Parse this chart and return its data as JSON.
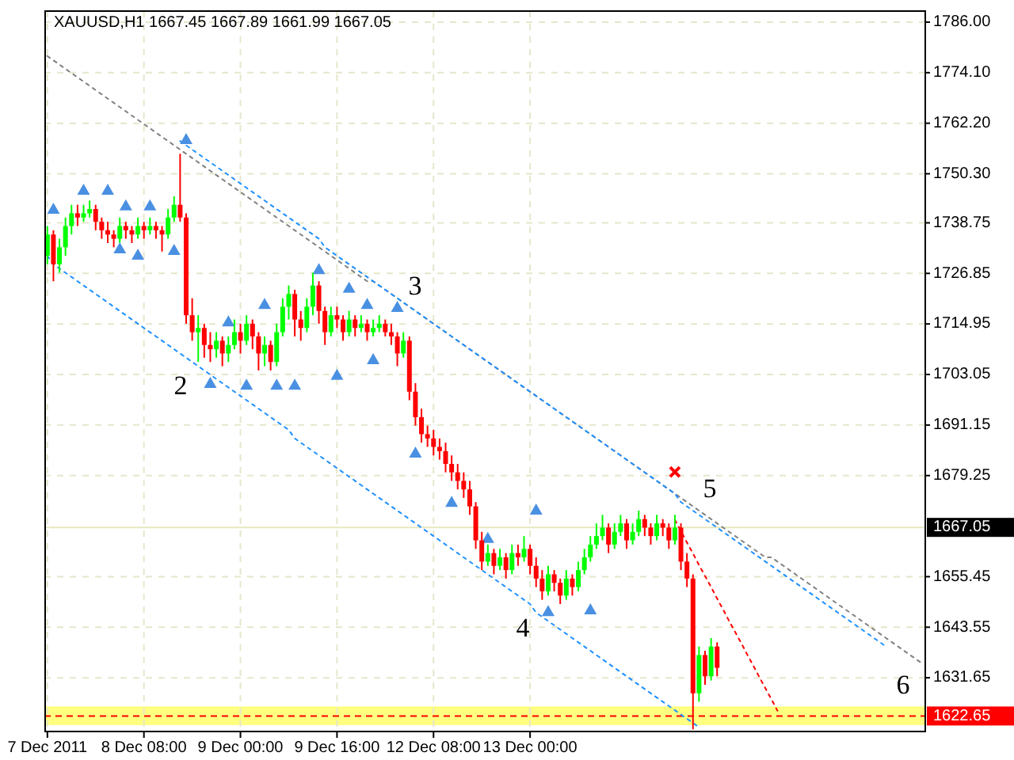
{
  "chart_data": {
    "type": "candlestick",
    "title": "XAUUSD,H1  1667.45 1667.89 1661.99 1667.05",
    "categories": [
      "7 Dec 2011",
      null,
      null,
      null,
      null,
      null,
      null,
      null,
      null,
      null,
      null,
      null,
      null,
      null,
      null,
      null,
      "8 Dec 08:00",
      null,
      null,
      null,
      null,
      null,
      null,
      null,
      null,
      null,
      null,
      null,
      null,
      null,
      null,
      null,
      "9 Dec 00:00",
      null,
      null,
      null,
      null,
      null,
      null,
      null,
      null,
      null,
      null,
      null,
      null,
      null,
      null,
      null,
      "9 Dec 16:00",
      null,
      null,
      null,
      null,
      null,
      null,
      null,
      null,
      null,
      null,
      null,
      null,
      null,
      null,
      null,
      "12 Dec 08:00",
      null,
      null,
      null,
      null,
      null,
      null,
      null,
      null,
      null,
      null,
      null,
      null,
      null,
      null,
      null,
      "13 Dec 00:00",
      null,
      null,
      null,
      null,
      null,
      null,
      null,
      null,
      null,
      null,
      null,
      null,
      null,
      null,
      null,
      null,
      null,
      null,
      null,
      null,
      null,
      null,
      null,
      null,
      null,
      null,
      null,
      null,
      null,
      null,
      null,
      null,
      null,
      null,
      null,
      null,
      null,
      null,
      null,
      null,
      null,
      null,
      null,
      null,
      null,
      null,
      null,
      null,
      null,
      null,
      null,
      null,
      null,
      null,
      null,
      null,
      null,
      null,
      null,
      null,
      null,
      null,
      null,
      null,
      null
    ],
    "ohlc": [
      [
        1731,
        1738,
        1729,
        1736
      ],
      [
        1736,
        1737,
        1725,
        1729
      ],
      [
        1729,
        1735,
        1727,
        1733
      ],
      [
        1733,
        1740,
        1731,
        1738
      ],
      [
        1738,
        1743,
        1736,
        1741
      ],
      [
        1741,
        1743,
        1738,
        1740
      ],
      [
        1740,
        1743,
        1739,
        1741
      ],
      [
        1741,
        1744,
        1740,
        1742
      ],
      [
        1742,
        1743,
        1737,
        1739
      ],
      [
        1739,
        1740,
        1735,
        1737
      ],
      [
        1737,
        1739,
        1734,
        1736
      ],
      [
        1736,
        1737,
        1733,
        1735
      ],
      [
        1735,
        1740,
        1734,
        1738
      ],
      [
        1738,
        1739,
        1735,
        1737
      ],
      [
        1737,
        1738,
        1734,
        1736
      ],
      [
        1736,
        1740,
        1735,
        1738
      ],
      [
        1738,
        1739,
        1735,
        1737
      ],
      [
        1737,
        1740,
        1736,
        1738
      ],
      [
        1738,
        1739,
        1735,
        1737
      ],
      [
        1737,
        1738,
        1732,
        1736
      ],
      [
        1736,
        1742,
        1735,
        1740
      ],
      [
        1740,
        1745,
        1739,
        1743
      ],
      [
        1743,
        1755,
        1739,
        1740
      ],
      [
        1740,
        1741,
        1715,
        1717
      ],
      [
        1717,
        1721,
        1711,
        1713
      ],
      [
        1713,
        1717,
        1706,
        1714
      ],
      [
        1714,
        1715,
        1707,
        1710
      ],
      [
        1710,
        1713,
        1706,
        1709
      ],
      [
        1709,
        1713,
        1707,
        1711
      ],
      [
        1711,
        1712,
        1705,
        1708
      ],
      [
        1708,
        1712,
        1706,
        1710
      ],
      [
        1710,
        1716,
        1709,
        1713
      ],
      [
        1713,
        1715,
        1708,
        1711
      ],
      [
        1711,
        1717,
        1710,
        1715
      ],
      [
        1715,
        1716,
        1709,
        1712
      ],
      [
        1712,
        1713,
        1704,
        1708
      ],
      [
        1708,
        1712,
        1705,
        1710
      ],
      [
        1710,
        1711,
        1704,
        1706
      ],
      [
        1706,
        1715,
        1705,
        1713
      ],
      [
        1713,
        1721,
        1712,
        1719
      ],
      [
        1719,
        1724,
        1716,
        1722
      ],
      [
        1722,
        1723,
        1712,
        1716
      ],
      [
        1716,
        1718,
        1711,
        1714
      ],
      [
        1714,
        1721,
        1713,
        1719
      ],
      [
        1719,
        1727,
        1717,
        1724
      ],
      [
        1724,
        1725,
        1715,
        1718
      ],
      [
        1718,
        1719,
        1710,
        1713
      ],
      [
        1713,
        1719,
        1712,
        1717
      ],
      [
        1717,
        1719,
        1714,
        1716
      ],
      [
        1716,
        1717,
        1711,
        1713
      ],
      [
        1713,
        1718,
        1712,
        1716
      ],
      [
        1716,
        1717,
        1712,
        1714
      ],
      [
        1714,
        1717,
        1713,
        1715
      ],
      [
        1715,
        1716,
        1711,
        1713
      ],
      [
        1713,
        1716,
        1712,
        1714
      ],
      [
        1714,
        1717,
        1713,
        1715
      ],
      [
        1715,
        1716,
        1712,
        1713
      ],
      [
        1713,
        1715,
        1710,
        1712
      ],
      [
        1712,
        1713,
        1705,
        1708
      ],
      [
        1708,
        1713,
        1707,
        1711
      ],
      [
        1711,
        1712,
        1697,
        1699
      ],
      [
        1699,
        1701,
        1691,
        1693
      ],
      [
        1693,
        1695,
        1687,
        1689
      ],
      [
        1689,
        1691,
        1686,
        1688
      ],
      [
        1688,
        1690,
        1684,
        1686
      ],
      [
        1686,
        1688,
        1683,
        1685
      ],
      [
        1685,
        1687,
        1680,
        1682
      ],
      [
        1682,
        1684,
        1678,
        1680
      ],
      [
        1680,
        1682,
        1676,
        1678
      ],
      [
        1678,
        1680,
        1674,
        1676
      ],
      [
        1676,
        1678,
        1670,
        1672
      ],
      [
        1672,
        1673,
        1662,
        1664
      ],
      [
        1664,
        1666,
        1657,
        1659
      ],
      [
        1659,
        1663,
        1658,
        1661
      ],
      [
        1661,
        1662,
        1656,
        1658
      ],
      [
        1658,
        1662,
        1657,
        1660
      ],
      [
        1660,
        1661,
        1655,
        1657
      ],
      [
        1657,
        1663,
        1656,
        1661
      ],
      [
        1661,
        1663,
        1658,
        1660
      ],
      [
        1660,
        1665,
        1659,
        1662
      ],
      [
        1662,
        1663,
        1656,
        1658
      ],
      [
        1658,
        1660,
        1653,
        1655
      ],
      [
        1655,
        1657,
        1650,
        1652
      ],
      [
        1652,
        1658,
        1651,
        1656
      ],
      [
        1656,
        1657,
        1652,
        1654
      ],
      [
        1654,
        1655,
        1649,
        1651
      ],
      [
        1651,
        1657,
        1650,
        1655
      ],
      [
        1655,
        1656,
        1651,
        1653
      ],
      [
        1653,
        1659,
        1652,
        1657
      ],
      [
        1657,
        1662,
        1656,
        1660
      ],
      [
        1660,
        1665,
        1659,
        1663
      ],
      [
        1663,
        1668,
        1662,
        1665
      ],
      [
        1665,
        1670,
        1664,
        1667
      ],
      [
        1667,
        1668,
        1661,
        1663
      ],
      [
        1663,
        1668,
        1662,
        1666
      ],
      [
        1666,
        1670,
        1665,
        1668
      ],
      [
        1668,
        1669,
        1662,
        1664
      ],
      [
        1664,
        1668,
        1663,
        1666
      ],
      [
        1666,
        1671,
        1665,
        1669
      ],
      [
        1669,
        1670,
        1665,
        1667
      ],
      [
        1667,
        1668,
        1663,
        1665
      ],
      [
        1665,
        1670,
        1664,
        1668
      ],
      [
        1668,
        1669,
        1665,
        1667
      ],
      [
        1667,
        1668,
        1662,
        1664
      ],
      [
        1664,
        1670,
        1663,
        1667
      ],
      [
        1667,
        1668,
        1657,
        1659
      ],
      [
        1659,
        1661,
        1653,
        1655
      ],
      [
        1655,
        1656,
        1619.5,
        1628
      ],
      [
        1628,
        1639,
        1626,
        1637
      ],
      [
        1637,
        1638,
        1630,
        1632
      ],
      [
        1632,
        1641,
        1631,
        1639
      ],
      [
        1639,
        1640,
        1632,
        1634
      ],
      null,
      null,
      null,
      null,
      null,
      null,
      null,
      null,
      null,
      null,
      null,
      null,
      null,
      null,
      null,
      null,
      null,
      null,
      null,
      null,
      null,
      null,
      null,
      null,
      null,
      null,
      null,
      null,
      null,
      null,
      null,
      null,
      null,
      null
    ],
    "colors": [
      "#00ff00",
      "#ff0000",
      "#00ff00",
      "#00ff00",
      "#00ff00",
      "#ff0000",
      "#00ff00",
      "#00ff00",
      "#ff0000",
      "#ff0000",
      "#ff0000",
      "#ff0000",
      "#00ff00",
      "#ff0000",
      "#ff0000",
      "#00ff00",
      "#ff0000",
      "#00ff00",
      "#ff0000",
      "#ff0000",
      "#00ff00",
      "#00ff00",
      "#ff0000",
      "#ff0000",
      "#ff0000",
      "#00ff00",
      "#ff0000",
      "#ff0000",
      "#00ff00",
      "#ff0000",
      "#00ff00",
      "#00ff00",
      "#ff0000",
      "#00ff00",
      "#ff0000",
      "#ff0000",
      "#00ff00",
      "#ff0000",
      "#00ff00",
      "#00ff00",
      "#00ff00",
      "#ff0000",
      "#ff0000",
      "#00ff00",
      "#00ff00",
      "#ff0000",
      "#ff0000",
      "#00ff00",
      "#ff0000",
      "#ff0000",
      "#00ff00",
      "#ff0000",
      "#00ff00",
      "#ff0000",
      "#00ff00",
      "#00ff00",
      "#ff0000",
      "#ff0000",
      "#ff0000",
      "#00ff00",
      "#ff0000",
      "#ff0000",
      "#ff0000",
      "#ff0000",
      "#ff0000",
      "#ff0000",
      "#ff0000",
      "#ff0000",
      "#ff0000",
      "#ff0000",
      "#ff0000",
      "#ff0000",
      "#ff0000",
      "#00ff00",
      "#ff0000",
      "#00ff00",
      "#ff0000",
      "#00ff00",
      "#ff0000",
      "#00ff00",
      "#ff0000",
      "#ff0000",
      "#ff0000",
      "#00ff00",
      "#ff0000",
      "#ff0000",
      "#00ff00",
      "#ff0000",
      "#00ff00",
      "#00ff00",
      "#00ff00",
      "#00ff00",
      "#00ff00",
      "#ff0000",
      "#00ff00",
      "#00ff00",
      "#ff0000",
      "#00ff00",
      "#00ff00",
      "#ff0000",
      "#ff0000",
      "#00ff00",
      "#ff0000",
      "#ff0000",
      "#00ff00",
      "#ff0000",
      "#ff0000",
      "#ff0000",
      "#00ff00",
      "#ff0000",
      "#00ff00",
      "#ff0000",
      null,
      null,
      null,
      null,
      null,
      null,
      null,
      null,
      null,
      null,
      null,
      null,
      null,
      null,
      null,
      null,
      null,
      null,
      null,
      null,
      null,
      null,
      null,
      null,
      null,
      null,
      null,
      null,
      null,
      null,
      null,
      null,
      null,
      null
    ],
    "series": [
      {
        "type": "line",
        "color": "#808080",
        "line_style": "dotted",
        "values": [
          1778,
          1777,
          1776,
          1775,
          1774,
          1773,
          1772,
          1771,
          1770,
          1769,
          1768,
          1767,
          1766,
          1765,
          1764,
          1763,
          1762,
          1761,
          1760,
          1759,
          1758,
          1757,
          1756,
          1755,
          1754,
          1753,
          1752,
          1751,
          1750,
          1749,
          1748,
          1747,
          1746,
          1745,
          1744,
          1743,
          1742,
          1741,
          1740,
          1739,
          1738,
          1737,
          1736,
          1735,
          1734,
          1733,
          1732,
          1731,
          1730,
          1729,
          1728,
          1727,
          1726,
          1725,
          1725,
          1724,
          1723,
          1722,
          1721,
          1720,
          1719,
          1718,
          1717,
          1716,
          1715,
          1714,
          1713,
          1712,
          1711,
          1710,
          1709,
          1708,
          1707,
          1706,
          1705,
          1704,
          1703,
          1702,
          1701,
          1700,
          1699,
          1698,
          1697,
          1696,
          1695,
          1694,
          1693,
          1692,
          1691,
          1690,
          1689,
          1688,
          1687,
          1686,
          1685,
          1684,
          1683,
          1682,
          1681,
          1680,
          1679,
          1678,
          1677,
          1676,
          1675,
          1674,
          1673,
          1672,
          1671,
          1670,
          1669,
          1668,
          1667,
          1666,
          1665,
          1664,
          1663,
          1662,
          1661,
          1660,
          1660,
          1659,
          1658,
          1657,
          1656,
          1655,
          1654,
          1653,
          1652,
          1651,
          1650,
          1649,
          1648,
          1647,
          1646,
          1645,
          1644,
          1643,
          1642,
          1641,
          1640,
          1639,
          1638,
          1637,
          1636,
          1635
        ]
      },
      {
        "type": "line",
        "color": "#1e90ff",
        "line_style": "dotted",
        "values": [
          null,
          null,
          null,
          null,
          null,
          null,
          null,
          null,
          null,
          null,
          null,
          null,
          null,
          null,
          null,
          null,
          null,
          null,
          null,
          null,
          null,
          null,
          1758,
          1757,
          1756,
          1755,
          1754,
          1753,
          1752,
          1751,
          1750,
          1749,
          1748,
          1747,
          1746,
          1745,
          1744,
          1743,
          1742,
          1741,
          1740,
          1739,
          1738,
          1737,
          1736,
          1735,
          1733,
          1732,
          1731,
          1730,
          1729,
          1728,
          1727,
          1726,
          1725,
          1724,
          1723,
          1722,
          1721,
          1720,
          1719,
          1718,
          1717,
          1716,
          1715,
          1714,
          1713,
          1712,
          1711,
          1710,
          1709,
          1708,
          1707,
          1706,
          1705,
          1704,
          1703,
          1702,
          1701,
          1700,
          1699,
          1698,
          1697,
          1696,
          1695,
          1694,
          1693,
          1692,
          1691,
          1690,
          1689,
          1688,
          1687,
          1686,
          1685,
          1684,
          1683,
          1682,
          1681,
          1680,
          1679,
          1678,
          1677,
          1676,
          1675,
          1673,
          1672,
          1671,
          1670,
          1669,
          1668,
          1667,
          1666,
          1665,
          1664,
          1663,
          1662,
          1661,
          1660,
          1659,
          1658,
          1657,
          1656,
          1655,
          1654,
          1653,
          1652,
          1651,
          1650,
          1649,
          1648,
          1647,
          1646,
          1645,
          1644,
          1643,
          1642,
          1641,
          1640,
          1639,
          null,
          null,
          null,
          null,
          null,
          null
        ]
      },
      {
        "type": "line",
        "color": "#1e90ff",
        "line_style": "dotted",
        "values": [
          1731,
          1729,
          1728,
          1727,
          1726,
          1725,
          1724,
          1723,
          1722,
          1721,
          1720,
          1719,
          1718,
          1717,
          1716,
          1715,
          1714,
          1713,
          1712,
          1711,
          1710,
          1709,
          1708,
          1707,
          1706,
          1705,
          1704,
          1703,
          1702,
          1701,
          1700,
          1699,
          1698,
          1697,
          1696,
          1695,
          1694,
          1693,
          1692,
          1691,
          1690,
          1688,
          1687,
          1686,
          1685,
          1684,
          1683,
          1682,
          1681,
          1680,
          1679,
          1678,
          1677,
          1676,
          1675,
          1674,
          1673,
          1672,
          1671,
          1670,
          1669,
          1668,
          1667,
          1666,
          1665,
          1664,
          1663,
          1662,
          1661,
          1660,
          1659,
          1658,
          1657,
          1656,
          1655,
          1654,
          1653,
          1652,
          1651,
          1650,
          1649,
          1647,
          1646,
          1645,
          1644,
          1643,
          1642,
          1641,
          1640,
          1639,
          1638,
          1637,
          1636,
          1635,
          1634,
          1633,
          1632,
          1631,
          1630,
          1629,
          1628,
          1627,
          1626,
          1625,
          1624,
          1623,
          1622,
          1621,
          1620,
          null,
          null,
          null,
          null,
          null,
          null,
          null,
          null,
          null,
          null,
          null,
          null,
          null,
          null,
          null,
          null,
          null,
          null,
          null,
          null,
          null,
          null,
          null,
          null,
          null,
          null,
          null,
          null,
          null,
          null,
          null,
          null,
          null,
          null,
          null,
          null,
          null
        ]
      },
      {
        "type": "line",
        "color": "#ff0000",
        "line_style": "dotted",
        "values": [
          null,
          null,
          null,
          null,
          null,
          null,
          null,
          null,
          null,
          null,
          null,
          null,
          null,
          null,
          null,
          null,
          null,
          null,
          null,
          null,
          null,
          null,
          null,
          null,
          null,
          null,
          null,
          null,
          null,
          null,
          null,
          null,
          null,
          null,
          null,
          null,
          null,
          null,
          null,
          null,
          null,
          null,
          null,
          null,
          null,
          null,
          null,
          null,
          null,
          null,
          null,
          null,
          null,
          null,
          null,
          null,
          null,
          null,
          null,
          null,
          null,
          null,
          null,
          null,
          null,
          null,
          null,
          null,
          null,
          null,
          null,
          null,
          null,
          null,
          null,
          null,
          null,
          null,
          null,
          null,
          null,
          null,
          null,
          null,
          null,
          null,
          null,
          null,
          null,
          null,
          null,
          null,
          null,
          null,
          null,
          null,
          null,
          null,
          null,
          null,
          null,
          null,
          null,
          null,
          1668.8,
          1666.2,
          1663.5,
          1660.9,
          1658.2,
          1655.6,
          1653.0,
          1650.3,
          1647.7,
          1645.0,
          1642.4,
          1639.8,
          1637.1,
          1634.5,
          1631.8,
          1629.2,
          1626.6,
          1623.9,
          null,
          null,
          null,
          null,
          null,
          null,
          null,
          null,
          null,
          null,
          null,
          null,
          null,
          null,
          null,
          null,
          null,
          null,
          null,
          null,
          null,
          null,
          null,
          null
        ]
      },
      {
        "type": "scatter",
        "color": "#4a90e2",
        "marker": "triangle",
        "values": [
          null,
          1742.0,
          null,
          null,
          null,
          null,
          1746.5,
          null,
          null,
          null,
          1746.5,
          null,
          null,
          1742.8,
          null,
          null,
          null,
          1742.8,
          null,
          null,
          null,
          null,
          null,
          1758.4,
          null,
          null,
          null,
          null,
          null,
          null,
          1715.5,
          null,
          null,
          null,
          null,
          null,
          1719.6,
          null,
          null,
          null,
          null,
          null,
          null,
          null,
          null,
          1727.8,
          null,
          null,
          null,
          null,
          1723.4,
          null,
          null,
          1719.6,
          null,
          null,
          null,
          null,
          1718.9,
          null,
          null,
          null,
          null,
          null,
          null,
          null,
          null,
          null,
          null,
          null,
          null,
          null,
          null,
          null,
          null,
          null,
          null,
          null,
          null,
          null,
          null,
          1671.2,
          null,
          null,
          null,
          null,
          null,
          null,
          null,
          null,
          null,
          null,
          null,
          null,
          null,
          null,
          null,
          null,
          null,
          null,
          null,
          null,
          null,
          null,
          null,
          null,
          null,
          null,
          null,
          null,
          null,
          null,
          null,
          null,
          null,
          null,
          null,
          null,
          null,
          null,
          null,
          null,
          null,
          null,
          null,
          null,
          null,
          null,
          null,
          null,
          null,
          null,
          null,
          null,
          null,
          null,
          null,
          null,
          null,
          null,
          null,
          null,
          null,
          null,
          null,
          null
        ]
      },
      {
        "type": "scatter",
        "color": "#4a90e2",
        "marker": "triangle",
        "values": [
          null,
          null,
          null,
          null,
          null,
          null,
          null,
          null,
          null,
          null,
          null,
          null,
          1732.7,
          null,
          null,
          1731.2,
          null,
          null,
          null,
          null,
          null,
          1732.3,
          null,
          null,
          null,
          null,
          null,
          1701.0,
          null,
          null,
          null,
          null,
          null,
          1700.6,
          null,
          null,
          null,
          null,
          1700.6,
          null,
          null,
          1700.6,
          null,
          null,
          null,
          null,
          null,
          null,
          1702.9,
          null,
          null,
          null,
          null,
          null,
          1706.6,
          null,
          null,
          null,
          null,
          null,
          null,
          1684.6,
          null,
          null,
          null,
          null,
          null,
          1673.0,
          null,
          null,
          null,
          null,
          null,
          1664.5,
          null,
          null,
          null,
          null,
          null,
          null,
          null,
          null,
          null,
          1647.3,
          null,
          null,
          null,
          null,
          null,
          null,
          1647.7,
          null,
          null,
          null,
          null,
          null,
          null,
          null,
          null,
          null,
          null,
          null,
          null,
          null,
          null,
          null,
          null,
          null,
          null,
          null,
          null,
          null,
          null,
          null,
          null,
          null,
          null,
          null,
          null,
          null,
          null,
          null,
          null,
          null,
          null,
          null,
          null,
          null,
          null,
          null,
          null,
          null,
          null,
          null,
          null,
          null,
          null,
          null,
          null,
          null,
          null,
          null,
          null,
          null,
          null,
          null
        ]
      },
      {
        "type": "scatter",
        "color": "#ff0000",
        "marker": "cross",
        "values": [
          null,
          null,
          null,
          null,
          null,
          null,
          null,
          null,
          null,
          null,
          null,
          null,
          null,
          null,
          null,
          null,
          null,
          null,
          null,
          null,
          null,
          null,
          null,
          null,
          null,
          null,
          null,
          null,
          null,
          null,
          null,
          null,
          null,
          null,
          null,
          null,
          null,
          null,
          null,
          null,
          null,
          null,
          null,
          null,
          null,
          null,
          null,
          null,
          null,
          null,
          null,
          null,
          null,
          null,
          null,
          null,
          null,
          null,
          null,
          null,
          null,
          null,
          null,
          null,
          null,
          null,
          null,
          null,
          null,
          null,
          null,
          null,
          null,
          null,
          null,
          null,
          null,
          null,
          null,
          null,
          null,
          null,
          null,
          null,
          null,
          null,
          null,
          null,
          null,
          null,
          null,
          null,
          null,
          null,
          null,
          null,
          null,
          null,
          null,
          null,
          null,
          null,
          null,
          null,
          1680.1,
          null,
          null,
          null,
          null,
          null,
          null,
          null,
          null,
          null,
          null,
          null,
          null,
          null,
          null,
          null,
          null,
          null,
          null,
          null,
          null,
          null,
          null,
          null,
          null,
          null,
          null,
          null,
          null,
          null,
          null,
          null,
          null,
          null,
          null,
          null,
          null,
          null,
          null,
          null,
          null,
          null
        ]
      }
    ],
    "annotations": [
      "2",
      "3",
      "4",
      "5"
    ],
    "ylim": [
      1619,
      1788.6
    ],
    "yticks": [
      {
        "value": 1786,
        "label": "1786.00"
      },
      {
        "value": 1774.1,
        "label": "1774.10"
      },
      {
        "value": 1762.2,
        "label": "1762.20"
      },
      {
        "value": 1750.3,
        "label": "1750.30"
      },
      {
        "value": 1738.75,
        "label": "1738.75"
      },
      {
        "value": 1726.85,
        "label": "1726.85"
      },
      {
        "value": 1714.95,
        "label": "1714.95"
      },
      {
        "value": 1703.05,
        "label": "1703.05"
      },
      {
        "value": 1691.15,
        "label": "1691.15"
      },
      {
        "value": 1679.25,
        "label": "1679.25"
      },
      {
        "value": 1655.45,
        "label": "1655.45"
      },
      {
        "value": 1643.55,
        "label": "1643.55"
      },
      {
        "value": 1631.65,
        "label": "1631.65"
      }
    ],
    "grid": true,
    "ref_lines": [
      {
        "axis": "y",
        "value": 1667.05,
        "label": "1667.05",
        "color": "#e8e8c0",
        "line_style": "solid"
      },
      {
        "axis": "y",
        "value": 1622.65,
        "label": "1622.65",
        "color": "#ff0000",
        "line_style": "dashed"
      }
    ],
    "bands": [
      {
        "axis": "y",
        "from": 1620.5,
        "to": 1624.9,
        "color": "#ffff80",
        "label": "6"
      }
    ]
  }
}
